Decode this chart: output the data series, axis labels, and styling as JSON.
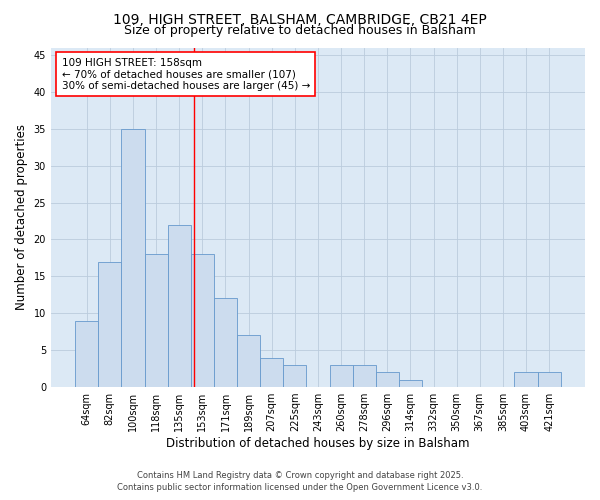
{
  "title_line1": "109, HIGH STREET, BALSHAM, CAMBRIDGE, CB21 4EP",
  "title_line2": "Size of property relative to detached houses in Balsham",
  "xlabel": "Distribution of detached houses by size in Balsham",
  "ylabel": "Number of detached properties",
  "footer_line1": "Contains HM Land Registry data © Crown copyright and database right 2025.",
  "footer_line2": "Contains public sector information licensed under the Open Government Licence v3.0.",
  "categories": [
    "64sqm",
    "82sqm",
    "100sqm",
    "118sqm",
    "135sqm",
    "153sqm",
    "171sqm",
    "189sqm",
    "207sqm",
    "225sqm",
    "243sqm",
    "260sqm",
    "278sqm",
    "296sqm",
    "314sqm",
    "332sqm",
    "350sqm",
    "367sqm",
    "385sqm",
    "403sqm",
    "421sqm"
  ],
  "values": [
    9,
    17,
    35,
    18,
    22,
    18,
    12,
    7,
    4,
    3,
    0,
    3,
    3,
    2,
    1,
    0,
    0,
    0,
    0,
    2,
    2
  ],
  "bar_color": "#ccdcee",
  "bar_edge_color": "#6699cc",
  "bar_edge_width": 0.6,
  "grid_color": "#bbccdd",
  "background_color": "#dce9f5",
  "figure_background": "#ffffff",
  "annotation_text": "109 HIGH STREET: 158sqm\n← 70% of detached houses are smaller (107)\n30% of semi-detached houses are larger (45) →",
  "annotation_box_color": "white",
  "annotation_box_edge": "red",
  "vline_color": "red",
  "vline_linewidth": 1.0,
  "vline_x": 4.65,
  "ylim": [
    0,
    46
  ],
  "yticks": [
    0,
    5,
    10,
    15,
    20,
    25,
    30,
    35,
    40,
    45
  ],
  "title_fontsize": 10,
  "subtitle_fontsize": 9,
  "axis_label_fontsize": 8.5,
  "tick_fontsize": 7,
  "annotation_fontsize": 7.5,
  "footer_fontsize": 6
}
